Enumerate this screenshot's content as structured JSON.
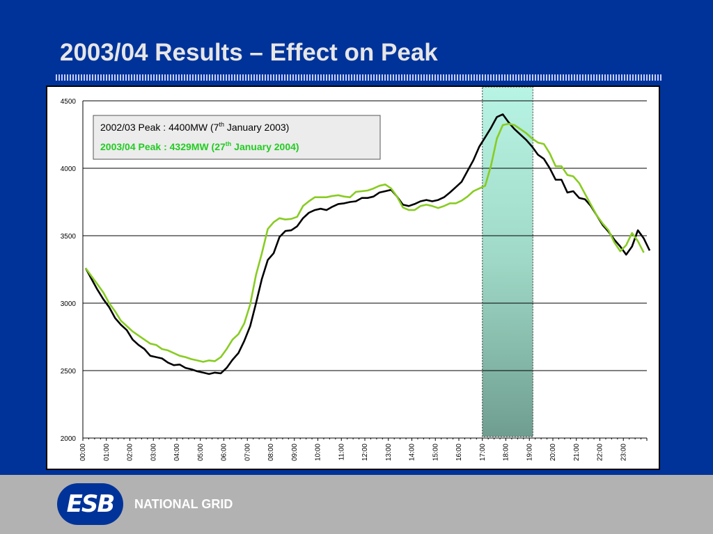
{
  "slide": {
    "title": "2003/04 Results – Effect on Peak",
    "organization": "NATIONAL GRID",
    "logo_text": "ESB"
  },
  "chart_data": {
    "type": "line",
    "ylim": [
      2000,
      4500
    ],
    "yticks": [
      2000,
      2500,
      3000,
      3500,
      4000,
      4500
    ],
    "xticks": [
      "00:00",
      "01:00",
      "02:00",
      "03:00",
      "04:00",
      "05:00",
      "06:00",
      "07:00",
      "08:00",
      "09:00",
      "10:00",
      "11:00",
      "12:00",
      "13:00",
      "14:00",
      "15:00",
      "16:00",
      "17:00",
      "18:00",
      "19:00",
      "20:00",
      "21:00",
      "22:00",
      "23:00"
    ],
    "grid": "horizontal",
    "highlight": {
      "from": "17:00",
      "to": "19:00",
      "color": "#b2f0e0"
    },
    "legend": [
      {
        "base": "2002/03 Peak : 4400MW (7",
        "sup": "th",
        "rest": " January 2003)",
        "color": "#000000"
      },
      {
        "base": "2003/04 Peak : 4329MW (27",
        "sup": "th",
        "rest": " January 2004)",
        "color": "#22cc22"
      }
    ],
    "series": [
      {
        "color": "#000000",
        "values": [
          3260,
          3180,
          3100,
          3030,
          2970,
          2890,
          2840,
          2800,
          2730,
          2690,
          2660,
          2610,
          2600,
          2590,
          2560,
          2540,
          2545,
          2520,
          2510,
          2495,
          2485,
          2475,
          2485,
          2480,
          2520,
          2580,
          2630,
          2720,
          2830,
          3000,
          3180,
          3320,
          3370,
          3490,
          3535,
          3540,
          3570,
          3630,
          3670,
          3690,
          3700,
          3690,
          3715,
          3735,
          3740,
          3750,
          3755,
          3780,
          3780,
          3790,
          3820,
          3830,
          3840,
          3790,
          3730,
          3720,
          3735,
          3755,
          3765,
          3755,
          3765,
          3785,
          3820,
          3860,
          3900,
          3980,
          4060,
          4160,
          4230,
          4300,
          4380,
          4400,
          4340,
          4290,
          4250,
          4210,
          4160,
          4100,
          4070,
          4000,
          3915,
          3915,
          3820,
          3830,
          3780,
          3770,
          3720,
          3650,
          3580,
          3530,
          3470,
          3420,
          3360,
          3420,
          3540,
          3480,
          3390
        ],
        "peak": 4400
      },
      {
        "color": "#88cc22",
        "values": [
          3260,
          3200,
          3140,
          3080,
          3000,
          2940,
          2870,
          2830,
          2790,
          2760,
          2730,
          2700,
          2690,
          2660,
          2650,
          2630,
          2610,
          2600,
          2585,
          2575,
          2565,
          2575,
          2570,
          2600,
          2660,
          2730,
          2770,
          2850,
          2990,
          3210,
          3370,
          3550,
          3600,
          3630,
          3620,
          3625,
          3640,
          3720,
          3755,
          3785,
          3785,
          3785,
          3795,
          3800,
          3790,
          3785,
          3825,
          3830,
          3835,
          3850,
          3870,
          3880,
          3850,
          3790,
          3710,
          3690,
          3690,
          3720,
          3730,
          3720,
          3705,
          3720,
          3740,
          3740,
          3760,
          3790,
          3830,
          3850,
          3870,
          4020,
          4220,
          4320,
          4330,
          4320,
          4290,
          4260,
          4220,
          4190,
          4180,
          4110,
          4015,
          4015,
          3950,
          3940,
          3890,
          3810,
          3730,
          3650,
          3590,
          3540,
          3450,
          3385,
          3430,
          3520,
          3460,
          3375
        ],
        "peak": 4329
      }
    ]
  }
}
